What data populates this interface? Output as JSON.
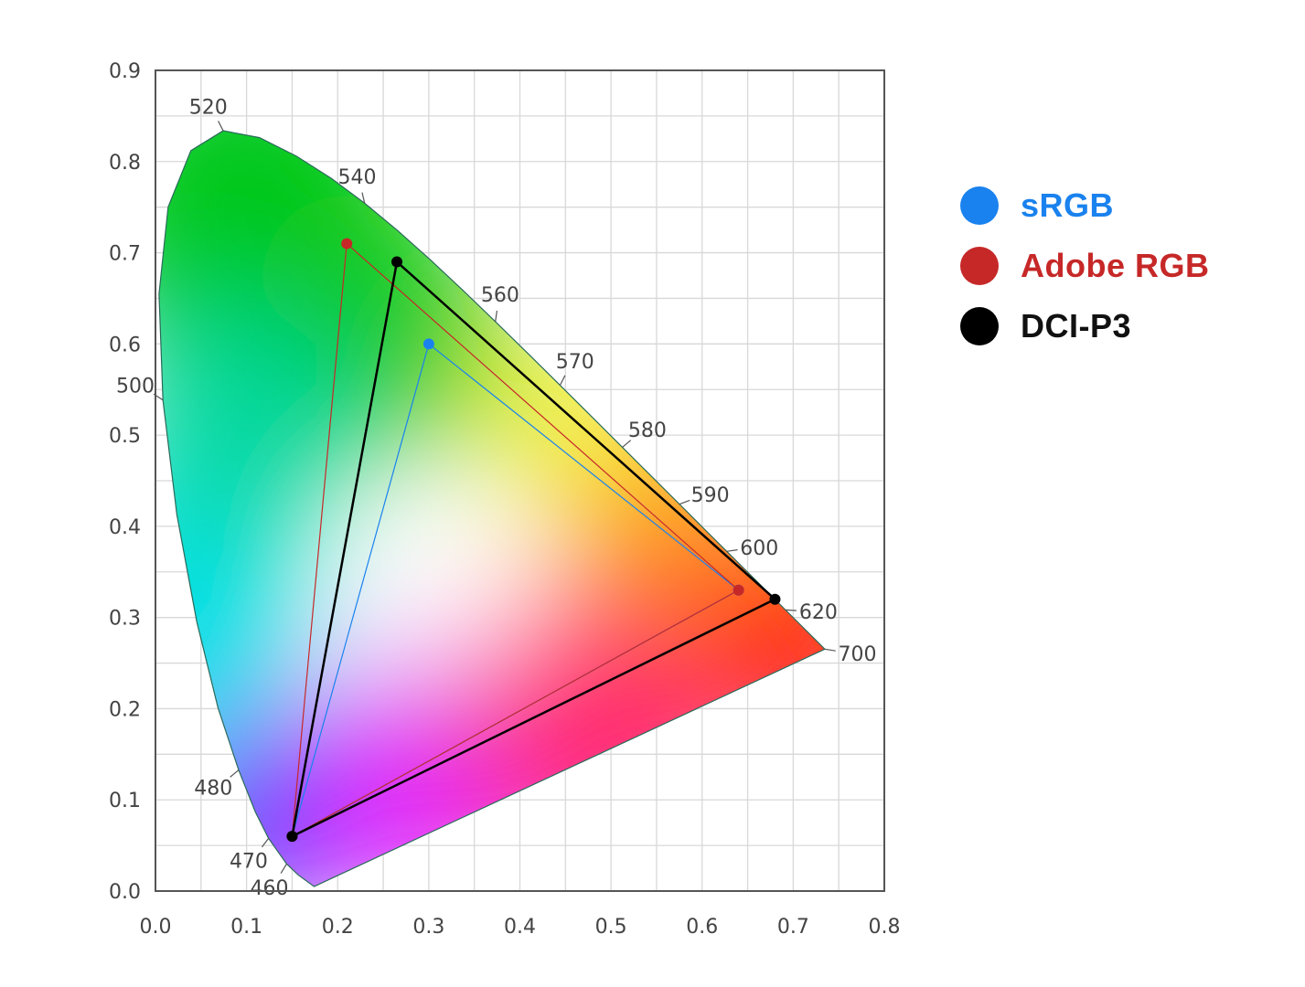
{
  "chart_data": {
    "type": "scatter",
    "title": "",
    "xlabel": "",
    "ylabel": "",
    "xlim": [
      0.0,
      0.8
    ],
    "ylim": [
      0.0,
      0.9
    ],
    "grid": true,
    "legend_position": "right",
    "x_ticks": [
      "0.0",
      "0.1",
      "0.2",
      "0.3",
      "0.4",
      "0.5",
      "0.6",
      "0.7",
      "0.8"
    ],
    "y_ticks": [
      "0.0",
      "0.1",
      "0.2",
      "0.3",
      "0.4",
      "0.5",
      "0.6",
      "0.7",
      "0.8",
      "0.9"
    ],
    "spectral_locus": [
      [
        380,
        0.1741,
        0.005
      ],
      [
        450,
        0.1566,
        0.0177
      ],
      [
        460,
        0.144,
        0.0297
      ],
      [
        470,
        0.1241,
        0.0578
      ],
      [
        475,
        0.1096,
        0.0868
      ],
      [
        480,
        0.0913,
        0.1327
      ],
      [
        485,
        0.0687,
        0.2007
      ],
      [
        490,
        0.0454,
        0.295
      ],
      [
        495,
        0.0235,
        0.4127
      ],
      [
        500,
        0.0082,
        0.5384
      ],
      [
        505,
        0.0039,
        0.6548
      ],
      [
        510,
        0.0139,
        0.7502
      ],
      [
        515,
        0.0389,
        0.812
      ],
      [
        520,
        0.0743,
        0.8338
      ],
      [
        525,
        0.1142,
        0.8262
      ],
      [
        530,
        0.1547,
        0.8059
      ],
      [
        535,
        0.1929,
        0.7816
      ],
      [
        540,
        0.2296,
        0.7543
      ],
      [
        545,
        0.2658,
        0.7243
      ],
      [
        550,
        0.3016,
        0.6923
      ],
      [
        555,
        0.3373,
        0.6589
      ],
      [
        560,
        0.3731,
        0.6245
      ],
      [
        565,
        0.4087,
        0.5896
      ],
      [
        570,
        0.4441,
        0.5547
      ],
      [
        575,
        0.4788,
        0.5202
      ],
      [
        580,
        0.5125,
        0.4866
      ],
      [
        585,
        0.5448,
        0.4544
      ],
      [
        590,
        0.5752,
        0.4242
      ],
      [
        595,
        0.6029,
        0.3965
      ],
      [
        600,
        0.627,
        0.3725
      ],
      [
        610,
        0.6658,
        0.334
      ],
      [
        620,
        0.6915,
        0.3083
      ],
      [
        700,
        0.7347,
        0.2653
      ]
    ],
    "wavelength_labels": [
      "460",
      "470",
      "480",
      "500",
      "520",
      "540",
      "560",
      "570",
      "580",
      "590",
      "600",
      "620",
      "700"
    ],
    "series": [
      {
        "name": "sRGB",
        "color": "#1a82ee",
        "points": [
          [
            0.64,
            0.33
          ],
          [
            0.3,
            0.6
          ],
          [
            0.15,
            0.06
          ]
        ]
      },
      {
        "name": "Adobe RGB",
        "color": "#c62828",
        "points": [
          [
            0.64,
            0.33
          ],
          [
            0.21,
            0.71
          ],
          [
            0.15,
            0.06
          ]
        ]
      },
      {
        "name": "DCI-P3",
        "color": "#000000",
        "points": [
          [
            0.68,
            0.32
          ],
          [
            0.265,
            0.69
          ],
          [
            0.15,
            0.06
          ]
        ]
      }
    ]
  },
  "legend": [
    {
      "label": "sRGB",
      "color": "#1a82ee"
    },
    {
      "label": "Adobe RGB",
      "color": "#c62828"
    },
    {
      "label": "DCI-P3",
      "color": "#111111"
    }
  ]
}
